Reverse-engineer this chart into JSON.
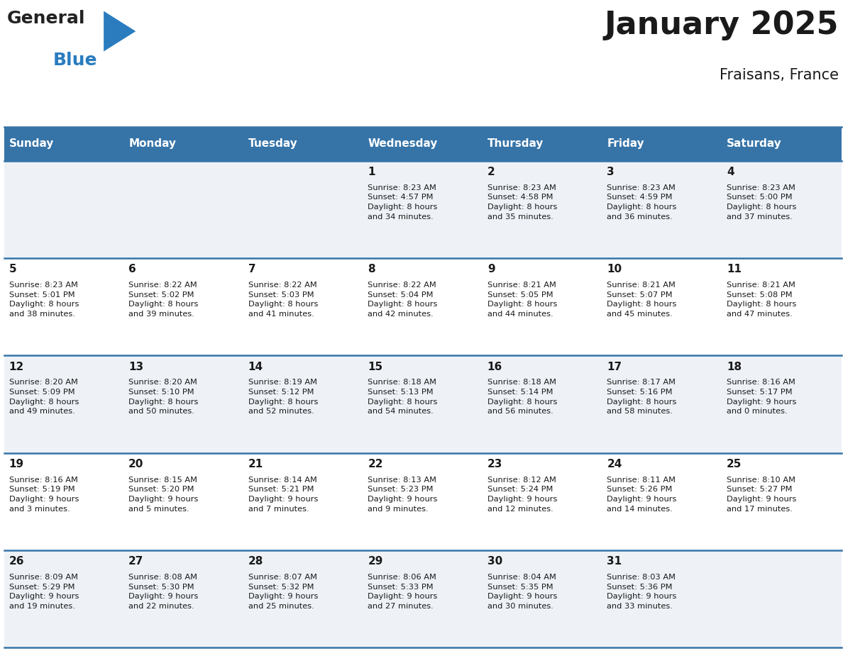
{
  "title": "January 2025",
  "subtitle": "Fraisans, France",
  "header_color": "#3674a8",
  "header_text_color": "#ffffff",
  "cell_bg_even": "#eef2f7",
  "cell_bg_odd": "#ffffff",
  "border_color": "#3674a8",
  "text_color": "#1a1a1a",
  "day_headers": [
    "Sunday",
    "Monday",
    "Tuesday",
    "Wednesday",
    "Thursday",
    "Friday",
    "Saturday"
  ],
  "weeks": [
    [
      {
        "day": null,
        "text": ""
      },
      {
        "day": null,
        "text": ""
      },
      {
        "day": null,
        "text": ""
      },
      {
        "day": 1,
        "text": "Sunrise: 8:23 AM\nSunset: 4:57 PM\nDaylight: 8 hours\nand 34 minutes."
      },
      {
        "day": 2,
        "text": "Sunrise: 8:23 AM\nSunset: 4:58 PM\nDaylight: 8 hours\nand 35 minutes."
      },
      {
        "day": 3,
        "text": "Sunrise: 8:23 AM\nSunset: 4:59 PM\nDaylight: 8 hours\nand 36 minutes."
      },
      {
        "day": 4,
        "text": "Sunrise: 8:23 AM\nSunset: 5:00 PM\nDaylight: 8 hours\nand 37 minutes."
      }
    ],
    [
      {
        "day": 5,
        "text": "Sunrise: 8:23 AM\nSunset: 5:01 PM\nDaylight: 8 hours\nand 38 minutes."
      },
      {
        "day": 6,
        "text": "Sunrise: 8:22 AM\nSunset: 5:02 PM\nDaylight: 8 hours\nand 39 minutes."
      },
      {
        "day": 7,
        "text": "Sunrise: 8:22 AM\nSunset: 5:03 PM\nDaylight: 8 hours\nand 41 minutes."
      },
      {
        "day": 8,
        "text": "Sunrise: 8:22 AM\nSunset: 5:04 PM\nDaylight: 8 hours\nand 42 minutes."
      },
      {
        "day": 9,
        "text": "Sunrise: 8:21 AM\nSunset: 5:05 PM\nDaylight: 8 hours\nand 44 minutes."
      },
      {
        "day": 10,
        "text": "Sunrise: 8:21 AM\nSunset: 5:07 PM\nDaylight: 8 hours\nand 45 minutes."
      },
      {
        "day": 11,
        "text": "Sunrise: 8:21 AM\nSunset: 5:08 PM\nDaylight: 8 hours\nand 47 minutes."
      }
    ],
    [
      {
        "day": 12,
        "text": "Sunrise: 8:20 AM\nSunset: 5:09 PM\nDaylight: 8 hours\nand 49 minutes."
      },
      {
        "day": 13,
        "text": "Sunrise: 8:20 AM\nSunset: 5:10 PM\nDaylight: 8 hours\nand 50 minutes."
      },
      {
        "day": 14,
        "text": "Sunrise: 8:19 AM\nSunset: 5:12 PM\nDaylight: 8 hours\nand 52 minutes."
      },
      {
        "day": 15,
        "text": "Sunrise: 8:18 AM\nSunset: 5:13 PM\nDaylight: 8 hours\nand 54 minutes."
      },
      {
        "day": 16,
        "text": "Sunrise: 8:18 AM\nSunset: 5:14 PM\nDaylight: 8 hours\nand 56 minutes."
      },
      {
        "day": 17,
        "text": "Sunrise: 8:17 AM\nSunset: 5:16 PM\nDaylight: 8 hours\nand 58 minutes."
      },
      {
        "day": 18,
        "text": "Sunrise: 8:16 AM\nSunset: 5:17 PM\nDaylight: 9 hours\nand 0 minutes."
      }
    ],
    [
      {
        "day": 19,
        "text": "Sunrise: 8:16 AM\nSunset: 5:19 PM\nDaylight: 9 hours\nand 3 minutes."
      },
      {
        "day": 20,
        "text": "Sunrise: 8:15 AM\nSunset: 5:20 PM\nDaylight: 9 hours\nand 5 minutes."
      },
      {
        "day": 21,
        "text": "Sunrise: 8:14 AM\nSunset: 5:21 PM\nDaylight: 9 hours\nand 7 minutes."
      },
      {
        "day": 22,
        "text": "Sunrise: 8:13 AM\nSunset: 5:23 PM\nDaylight: 9 hours\nand 9 minutes."
      },
      {
        "day": 23,
        "text": "Sunrise: 8:12 AM\nSunset: 5:24 PM\nDaylight: 9 hours\nand 12 minutes."
      },
      {
        "day": 24,
        "text": "Sunrise: 8:11 AM\nSunset: 5:26 PM\nDaylight: 9 hours\nand 14 minutes."
      },
      {
        "day": 25,
        "text": "Sunrise: 8:10 AM\nSunset: 5:27 PM\nDaylight: 9 hours\nand 17 minutes."
      }
    ],
    [
      {
        "day": 26,
        "text": "Sunrise: 8:09 AM\nSunset: 5:29 PM\nDaylight: 9 hours\nand 19 minutes."
      },
      {
        "day": 27,
        "text": "Sunrise: 8:08 AM\nSunset: 5:30 PM\nDaylight: 9 hours\nand 22 minutes."
      },
      {
        "day": 28,
        "text": "Sunrise: 8:07 AM\nSunset: 5:32 PM\nDaylight: 9 hours\nand 25 minutes."
      },
      {
        "day": 29,
        "text": "Sunrise: 8:06 AM\nSunset: 5:33 PM\nDaylight: 9 hours\nand 27 minutes."
      },
      {
        "day": 30,
        "text": "Sunrise: 8:04 AM\nSunset: 5:35 PM\nDaylight: 9 hours\nand 30 minutes."
      },
      {
        "day": 31,
        "text": "Sunrise: 8:03 AM\nSunset: 5:36 PM\nDaylight: 9 hours\nand 33 minutes."
      },
      {
        "day": null,
        "text": ""
      }
    ]
  ]
}
